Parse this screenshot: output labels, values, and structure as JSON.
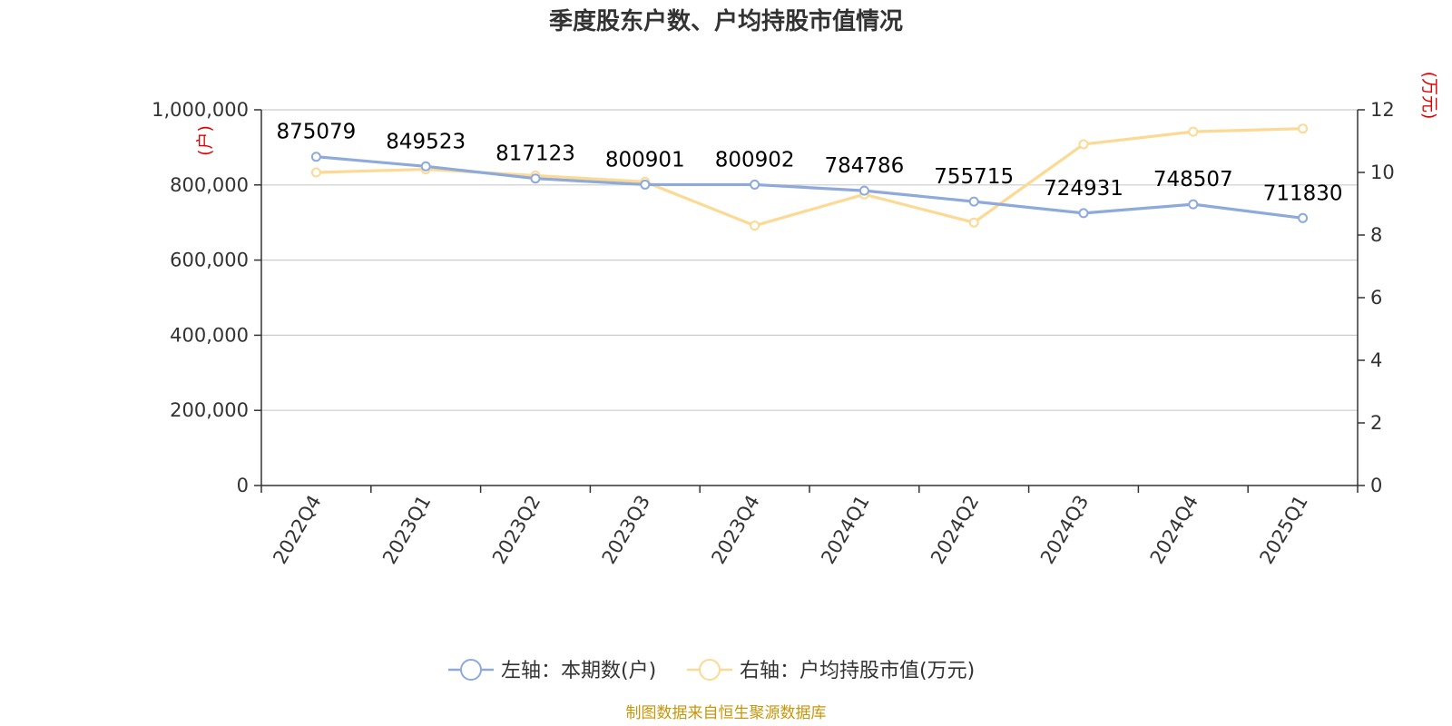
{
  "chart_data": {
    "type": "line",
    "title": "季度股东户数、户均持股市值情况",
    "categories": [
      "2022Q4",
      "2023Q1",
      "2023Q2",
      "2023Q3",
      "2023Q4",
      "2024Q1",
      "2024Q2",
      "2024Q3",
      "2024Q4",
      "2025Q1"
    ],
    "y_left": {
      "unit": "(户)",
      "ylim": [
        0,
        1000000
      ],
      "ticks": [
        0,
        200000,
        400000,
        600000,
        800000,
        1000000
      ],
      "tick_labels": [
        "0",
        "200,000",
        "400,000",
        "600,000",
        "800,000",
        "1,000,000"
      ]
    },
    "y_right": {
      "unit": "(万元)",
      "ylim": [
        0,
        12
      ],
      "ticks": [
        0,
        2,
        4,
        6,
        8,
        10,
        12
      ],
      "tick_labels": [
        "0",
        "2",
        "4",
        "6",
        "8",
        "10",
        "12"
      ]
    },
    "series": [
      {
        "name": "左轴：本期数(户)",
        "axis": "left",
        "color": "#8eaadb",
        "values": [
          875079,
          849523,
          817123,
          800901,
          800902,
          784786,
          755715,
          724931,
          748507,
          711830
        ],
        "labels": [
          "875079",
          "849523",
          "817123",
          "800901",
          "800902",
          "784786",
          "755715",
          "724931",
          "748507",
          "711830"
        ]
      },
      {
        "name": "右轴：户均持股市值(万元)",
        "axis": "right",
        "color": "#fcd994",
        "values": [
          10.0,
          10.1,
          9.9,
          9.7,
          8.3,
          9.3,
          8.4,
          10.9,
          11.3,
          11.4
        ]
      }
    ],
    "grid": true,
    "legend_position": "bottom-center",
    "source": "制图数据来自恒生聚源数据库"
  }
}
